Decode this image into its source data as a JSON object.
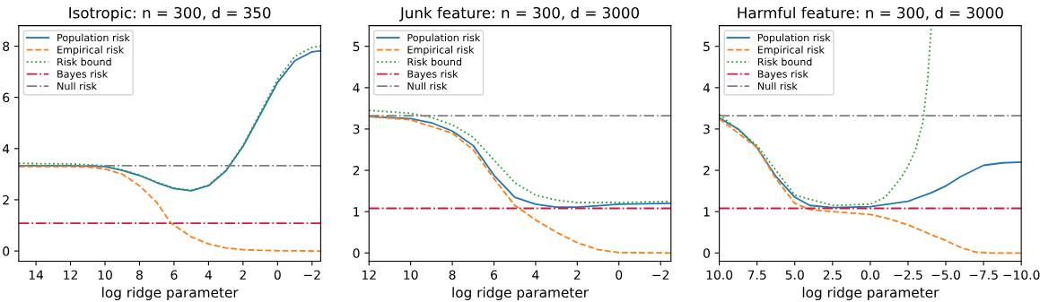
{
  "chart_data": [
    {
      "type": "line",
      "title": "Isotropic: n = 300, d = 350",
      "xlabel": "log ridge parameter",
      "xlim": [
        15,
        -2.5
      ],
      "xticks": [
        14,
        12,
        10,
        8,
        6,
        4,
        2,
        0,
        {
          "value": -2,
          "label": "−2"
        }
      ],
      "ylim": [
        -0.4,
        8.8
      ],
      "yticks": [
        0,
        2,
        4,
        6,
        8
      ],
      "legend": "top left",
      "grid": false,
      "series": [
        {
          "name": "Population risk",
          "color": "#1f77b4",
          "line_style": "solid",
          "x": [
            15,
            12,
            10,
            9,
            8,
            7,
            6,
            5,
            4,
            3,
            2,
            1,
            0,
            -1,
            -2,
            -2.5
          ],
          "values": [
            3.33,
            3.33,
            3.3,
            3.15,
            2.95,
            2.67,
            2.44,
            2.35,
            2.55,
            3.12,
            4.09,
            5.33,
            6.58,
            7.43,
            7.78,
            7.82
          ]
        },
        {
          "name": "Empirical risk",
          "color": "#ff7f0e",
          "line_style": "dashed",
          "x": [
            15,
            12,
            11,
            10,
            9,
            8,
            7,
            6.2,
            5,
            4,
            3,
            2,
            0,
            -2.5
          ],
          "values": [
            3.3,
            3.3,
            3.28,
            3.2,
            3.0,
            2.55,
            1.9,
            1.1,
            0.55,
            0.28,
            0.12,
            0.05,
            0.01,
            0.0
          ]
        },
        {
          "name": "Risk bound",
          "color": "#2ca02c",
          "line_style": "dotted",
          "x": [
            15,
            12,
            10,
            9,
            8,
            7,
            6,
            5,
            4,
            3,
            2,
            1,
            0,
            -1,
            -2,
            -2.5
          ],
          "values": [
            3.42,
            3.4,
            3.33,
            3.17,
            2.97,
            2.69,
            2.46,
            2.37,
            2.57,
            3.15,
            4.12,
            5.4,
            6.7,
            7.6,
            7.95,
            8.0
          ]
        },
        {
          "name": "Bayes risk",
          "color": "#dc143c",
          "line_style": "dashdot",
          "x": [
            15,
            -2.5
          ],
          "values": [
            1.08,
            1.08
          ]
        },
        {
          "name": "Null risk",
          "color": "#7f7f7f",
          "line_style": "dashdot",
          "x": [
            15,
            -2.5
          ],
          "values": [
            3.33,
            3.33
          ]
        }
      ]
    },
    {
      "type": "line",
      "title": "Junk feature: n = 300, d = 3000",
      "xlabel": "log ridge parameter",
      "xlim": [
        12,
        -2.5
      ],
      "xticks": [
        12,
        10,
        8,
        6,
        4,
        2,
        0,
        {
          "value": -2,
          "label": "−2"
        }
      ],
      "ylim": [
        -0.2,
        5.5
      ],
      "yticks": [
        0,
        1,
        2,
        3,
        4,
        5
      ],
      "legend": "top left",
      "grid": false,
      "series": [
        {
          "name": "Population risk",
          "color": "#1f77b4",
          "line_style": "solid",
          "x": [
            12,
            10,
            9,
            8,
            7,
            6,
            5,
            4,
            3,
            2,
            1,
            0,
            -2.5
          ],
          "values": [
            3.3,
            3.25,
            3.15,
            2.95,
            2.6,
            1.88,
            1.35,
            1.18,
            1.11,
            1.11,
            1.14,
            1.18,
            1.2
          ]
        },
        {
          "name": "Empirical risk",
          "color": "#ff7f0e",
          "line_style": "dashed",
          "x": [
            12,
            10,
            8,
            7,
            6,
            5,
            4,
            3,
            2,
            1,
            0,
            -2.5
          ],
          "values": [
            3.3,
            3.22,
            2.9,
            2.5,
            1.8,
            1.15,
            0.8,
            0.5,
            0.25,
            0.08,
            0.01,
            0.0
          ]
        },
        {
          "name": "Risk bound",
          "color": "#2ca02c",
          "line_style": "dotted",
          "x": [
            12,
            10,
            9,
            8,
            7,
            6,
            5,
            4,
            3,
            2,
            0,
            -2.5
          ],
          "values": [
            3.45,
            3.38,
            3.28,
            3.1,
            2.8,
            2.25,
            1.7,
            1.4,
            1.28,
            1.22,
            1.22,
            1.25
          ]
        },
        {
          "name": "Bayes risk",
          "color": "#dc143c",
          "line_style": "dashdot",
          "x": [
            12,
            -2.5
          ],
          "values": [
            1.08,
            1.08
          ]
        },
        {
          "name": "Null risk",
          "color": "#7f7f7f",
          "line_style": "dashdot",
          "x": [
            12,
            -2.5
          ],
          "values": [
            3.32,
            3.32
          ]
        }
      ]
    },
    {
      "type": "line",
      "title": "Harmful feature: n = 300, d = 3000",
      "xlabel": "log ridge parameter",
      "xlim": [
        10,
        -10
      ],
      "xticks": [
        {
          "value": 10,
          "label": "10.0"
        },
        {
          "value": 7.5,
          "label": "7.5"
        },
        {
          "value": 5,
          "label": "5.0"
        },
        {
          "value": 2.5,
          "label": "2.5"
        },
        {
          "value": 0,
          "label": "0.0"
        },
        {
          "value": -2.5,
          "label": "−2.5"
        },
        {
          "value": -5,
          "label": "−5.0"
        },
        {
          "value": -7.5,
          "label": "−7.5"
        },
        {
          "value": -10,
          "label": "−10.0"
        }
      ],
      "ylim": [
        -0.2,
        5.5
      ],
      "yticks": [
        0,
        1,
        2,
        3,
        4,
        5
      ],
      "legend": "top left",
      "grid": false,
      "series": [
        {
          "name": "Population risk",
          "color": "#1f77b4",
          "line_style": "solid",
          "x": [
            10,
            8.75,
            7.5,
            6.25,
            5,
            4,
            2.5,
            0,
            -2.5,
            -4,
            -5,
            -6,
            -7.5,
            -8.75,
            -10
          ],
          "values": [
            3.27,
            3.0,
            2.55,
            1.85,
            1.35,
            1.15,
            1.1,
            1.12,
            1.25,
            1.45,
            1.62,
            1.85,
            2.12,
            2.18,
            2.2
          ]
        },
        {
          "name": "Empirical risk",
          "color": "#ff7f0e",
          "line_style": "dashed",
          "x": [
            10,
            7.5,
            6.25,
            5,
            4,
            2.5,
            0,
            -1,
            -2.5,
            -4,
            -5,
            -6,
            -7,
            -8,
            -10
          ],
          "values": [
            3.25,
            2.55,
            1.8,
            1.2,
            1.05,
            1.0,
            0.93,
            0.85,
            0.68,
            0.45,
            0.3,
            0.13,
            0.02,
            0.0,
            0.0
          ]
        },
        {
          "name": "Risk bound",
          "color": "#2ca02c",
          "line_style": "dotted",
          "x": [
            10,
            7.5,
            5,
            2.5,
            0,
            -1,
            -2,
            -2.5,
            -3,
            -3.5,
            -3.8,
            -4.04
          ],
          "values": [
            3.35,
            2.6,
            1.4,
            1.15,
            1.18,
            1.35,
            1.8,
            2.1,
            2.5,
            3.2,
            4.2,
            5.5
          ]
        },
        {
          "name": "Bayes risk",
          "color": "#dc143c",
          "line_style": "dashdot",
          "x": [
            10,
            -10
          ],
          "values": [
            1.08,
            1.08
          ]
        },
        {
          "name": "Null risk",
          "color": "#7f7f7f",
          "line_style": "dashdot",
          "x": [
            10,
            -10
          ],
          "values": [
            3.32,
            3.32
          ]
        }
      ]
    }
  ]
}
